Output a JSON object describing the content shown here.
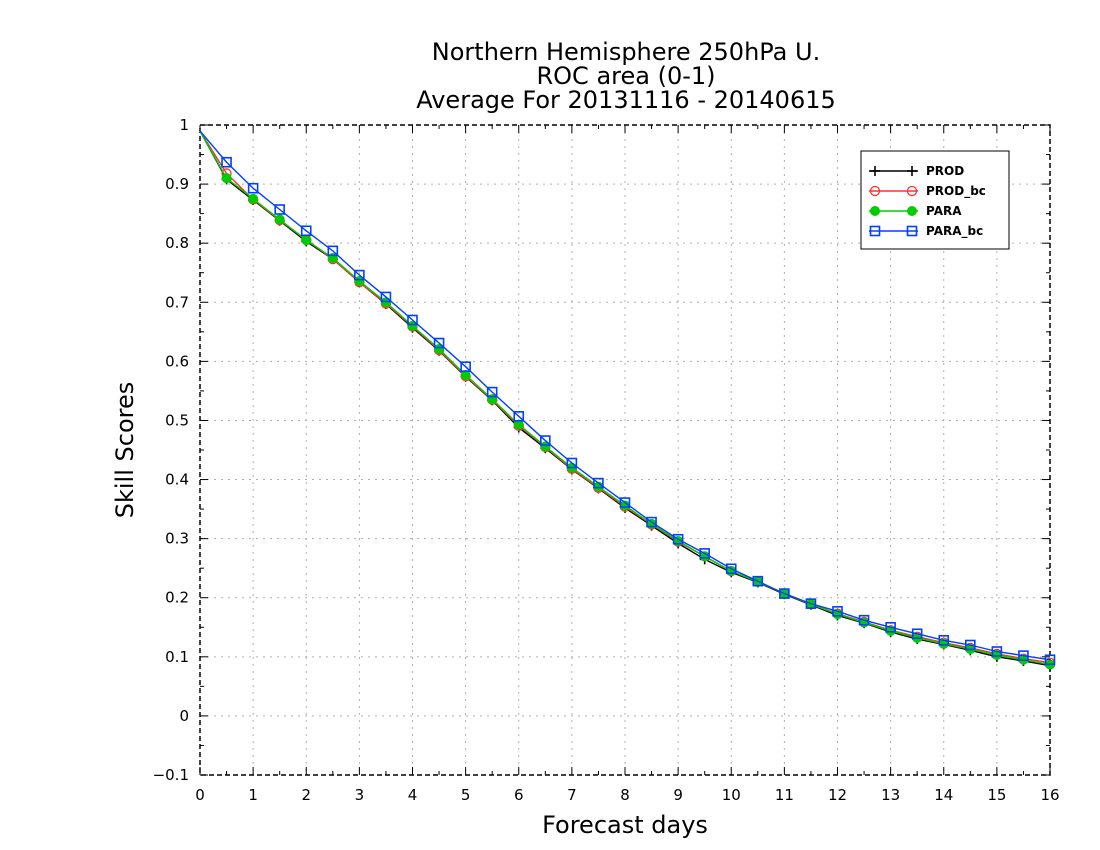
{
  "chart_data": {
    "type": "line",
    "title_lines": [
      "Northern Hemisphere 250hPa U.",
      "ROC area (0-1)",
      "Average For 20131116 - 20140615"
    ],
    "xlabel": "Forecast days",
    "ylabel": "Skill Scores",
    "xlim": [
      0,
      16
    ],
    "ylim": [
      -0.1,
      1
    ],
    "x_ticks": [
      0,
      1,
      2,
      3,
      4,
      5,
      6,
      7,
      8,
      9,
      10,
      11,
      12,
      13,
      14,
      15,
      16
    ],
    "y_ticks": [
      -0.1,
      0,
      0.1,
      0.2,
      0.3,
      0.4,
      0.5,
      0.6,
      0.7,
      0.8,
      0.9,
      1
    ],
    "y_tick_labels": [
      "−0.1",
      "0",
      "0.1",
      "0.2",
      "0.3",
      "0.4",
      "0.5",
      "0.6",
      "0.7",
      "0.8",
      "0.9",
      "1"
    ],
    "grid": true,
    "legend_position": "top-right",
    "x": [
      0,
      0.5,
      1,
      1.5,
      2,
      2.5,
      3,
      3.5,
      4,
      4.5,
      5,
      5.5,
      6,
      6.5,
      7,
      7.5,
      8,
      8.5,
      9,
      9.5,
      10,
      10.5,
      11,
      11.5,
      12,
      12.5,
      13,
      13.5,
      14,
      14.5,
      15,
      15.5,
      16
    ],
    "series": [
      {
        "name": "PROD",
        "color": "#000000",
        "marker": "plus",
        "values": [
          0.99,
          0.908,
          0.873,
          0.838,
          0.803,
          0.773,
          0.734,
          0.697,
          0.657,
          0.618,
          0.574,
          0.534,
          0.488,
          0.453,
          0.417,
          0.385,
          0.352,
          0.322,
          0.292,
          0.265,
          0.243,
          0.226,
          0.206,
          0.188,
          0.17,
          0.157,
          0.142,
          0.13,
          0.121,
          0.111,
          0.1,
          0.093,
          0.085
        ]
      },
      {
        "name": "PROD_bc",
        "color": "#ff3030",
        "marker": "circle",
        "values": [
          0.99,
          0.918,
          0.874,
          0.839,
          0.806,
          0.773,
          0.734,
          0.698,
          0.659,
          0.619,
          0.575,
          0.535,
          0.491,
          0.455,
          0.418,
          0.386,
          0.354,
          0.324,
          0.295,
          0.27,
          0.245,
          0.227,
          0.207,
          0.189,
          0.173,
          0.159,
          0.145,
          0.134,
          0.124,
          0.115,
          0.105,
          0.097,
          0.09
        ]
      },
      {
        "name": "PARA",
        "color": "#00cc00",
        "marker": "dot",
        "values": [
          0.99,
          0.91,
          0.875,
          0.84,
          0.805,
          0.775,
          0.736,
          0.7,
          0.66,
          0.621,
          0.577,
          0.536,
          0.493,
          0.456,
          0.42,
          0.388,
          0.356,
          0.325,
          0.296,
          0.27,
          0.245,
          0.227,
          0.207,
          0.189,
          0.172,
          0.158,
          0.144,
          0.132,
          0.122,
          0.113,
          0.103,
          0.095,
          0.087
        ]
      },
      {
        "name": "PARA_bc",
        "color": "#0040ff",
        "marker": "square",
        "values": [
          0.99,
          0.937,
          0.893,
          0.857,
          0.821,
          0.787,
          0.746,
          0.709,
          0.67,
          0.631,
          0.591,
          0.548,
          0.507,
          0.466,
          0.428,
          0.394,
          0.361,
          0.328,
          0.299,
          0.275,
          0.249,
          0.228,
          0.207,
          0.19,
          0.177,
          0.162,
          0.15,
          0.139,
          0.128,
          0.12,
          0.109,
          0.102,
          0.095
        ]
      }
    ]
  }
}
